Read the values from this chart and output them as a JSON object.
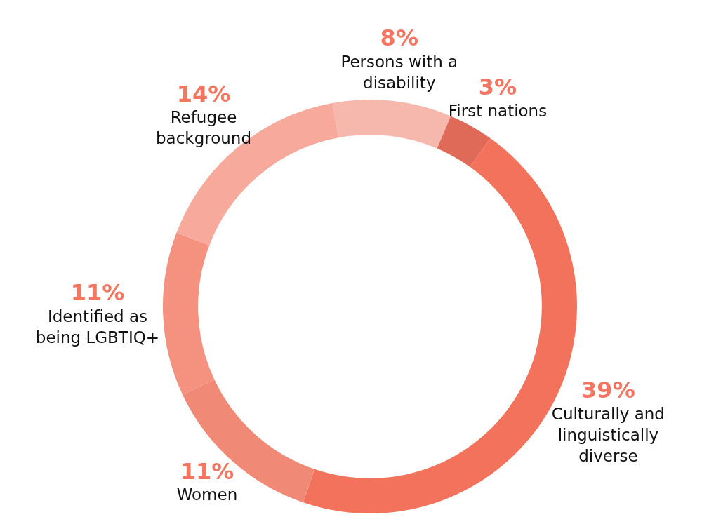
{
  "chart_data": {
    "type": "donut",
    "categories": [
      "Persons with a disability",
      "First nations",
      "Culturally and linguistically diverse",
      "Women",
      "Identified as being LGBTIQ+",
      "Refugee background"
    ],
    "values": [
      8,
      3,
      39,
      11,
      11,
      14
    ],
    "value_labels": [
      "8%",
      "3%",
      "39%",
      "11%",
      "11%",
      "14%"
    ],
    "colors": [
      "#f6b8ad",
      "#e06a58",
      "#f2725c",
      "#f08a77",
      "#f4927f",
      "#f7a99b"
    ],
    "legend": false
  }
}
